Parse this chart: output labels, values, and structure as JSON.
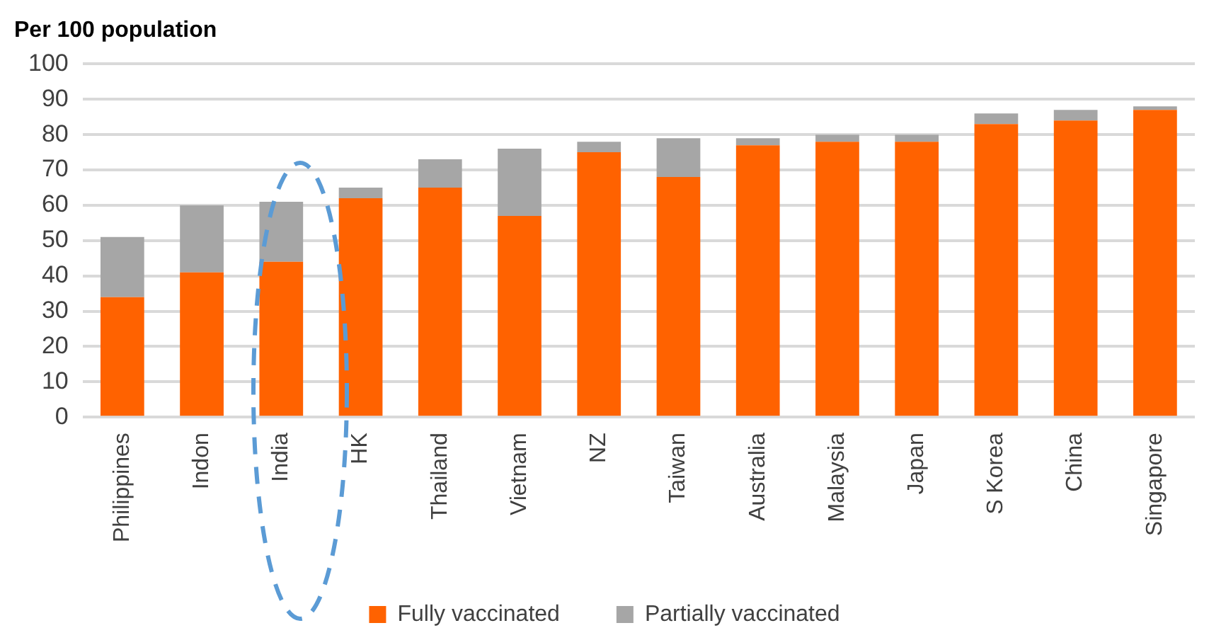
{
  "chart_data": {
    "type": "bar",
    "ylabel": "Per 100 population",
    "stacked": true,
    "categories": [
      "Philippines",
      "Indon",
      "India",
      "HK",
      "Thailand",
      "Vietnam",
      "NZ",
      "Taiwan",
      "Australia",
      "Malaysia",
      "Japan",
      "S Korea",
      "China",
      "Singapore"
    ],
    "series": [
      {
        "name": "Fully vaccinated",
        "color": "#ff6200",
        "values": [
          34,
          41,
          44,
          62,
          65,
          57,
          75,
          68,
          77,
          78,
          78,
          83,
          84,
          87
        ]
      },
      {
        "name": "Partially vaccinated",
        "color": "#a6a6a6",
        "values": [
          17,
          19,
          17,
          3,
          8,
          19,
          3,
          11,
          2,
          2,
          2,
          3,
          3,
          1
        ]
      }
    ],
    "ylim": [
      0,
      100
    ],
    "yticks": [
      0,
      10,
      20,
      30,
      40,
      50,
      60,
      70,
      80,
      90,
      100
    ],
    "grid": "y",
    "legend": "bottom"
  }
}
